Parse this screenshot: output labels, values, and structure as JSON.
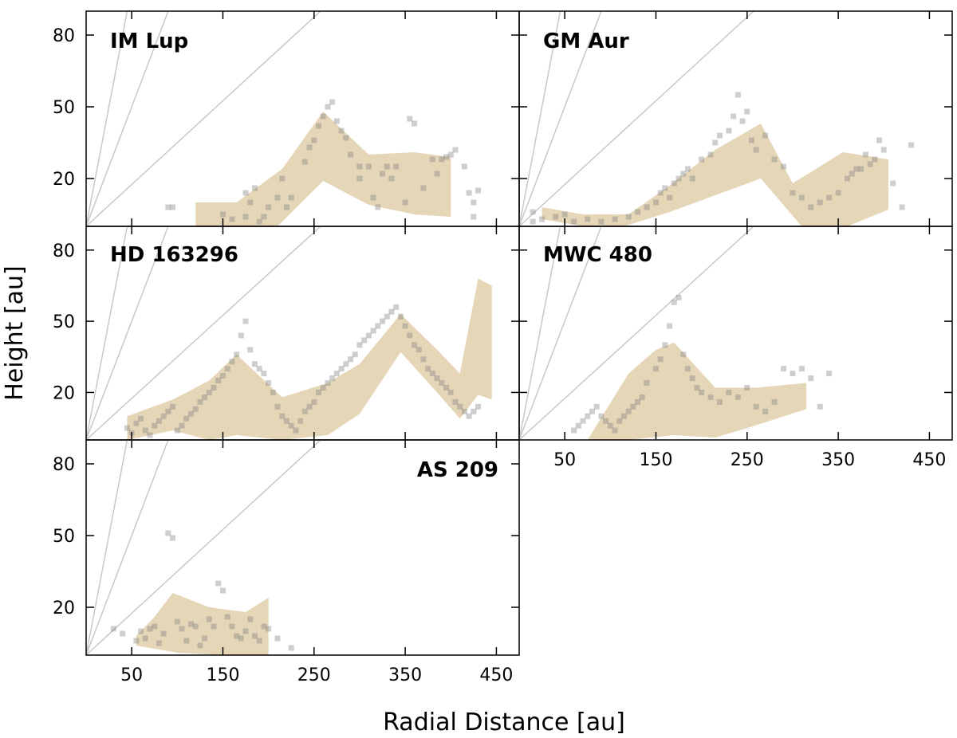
{
  "figure": {
    "xlabel": "Radial Distance [au]",
    "ylabel": "Height [au]"
  },
  "chart_data": [
    {
      "type": "scatter",
      "title": "IM Lup",
      "xlim": [
        0,
        475
      ],
      "ylim": [
        0,
        90
      ],
      "xticks": [
        50,
        150,
        250,
        350,
        450
      ],
      "yticks": [
        20,
        50,
        80
      ],
      "xticklabels_visible": false,
      "reference_lines_slope": [
        2.0,
        1.0,
        0.35
      ],
      "band": {
        "upper": [
          [
            120,
            10
          ],
          [
            165,
            10
          ],
          [
            215,
            24
          ],
          [
            260,
            48
          ],
          [
            310,
            30
          ],
          [
            360,
            31
          ],
          [
            400,
            29
          ]
        ],
        "lower": [
          [
            120,
            0
          ],
          [
            210,
            0
          ],
          [
            260,
            19
          ],
          [
            310,
            9
          ],
          [
            360,
            5
          ],
          [
            400,
            4
          ]
        ]
      },
      "points": [
        [
          90,
          8
        ],
        [
          95,
          8
        ],
        [
          150,
          5
        ],
        [
          160,
          3
        ],
        [
          175,
          4
        ],
        [
          175,
          14
        ],
        [
          180,
          10
        ],
        [
          185,
          16
        ],
        [
          190,
          2
        ],
        [
          195,
          4
        ],
        [
          200,
          8
        ],
        [
          210,
          12
        ],
        [
          215,
          20
        ],
        [
          220,
          8
        ],
        [
          225,
          12
        ],
        [
          240,
          27
        ],
        [
          245,
          33
        ],
        [
          250,
          36
        ],
        [
          255,
          42
        ],
        [
          260,
          46
        ],
        [
          265,
          50
        ],
        [
          270,
          52
        ],
        [
          275,
          44
        ],
        [
          280,
          40
        ],
        [
          285,
          37
        ],
        [
          290,
          30
        ],
        [
          300,
          25
        ],
        [
          300,
          20
        ],
        [
          310,
          25
        ],
        [
          315,
          12
        ],
        [
          320,
          8
        ],
        [
          325,
          22
        ],
        [
          330,
          25
        ],
        [
          335,
          20
        ],
        [
          340,
          25
        ],
        [
          350,
          10
        ],
        [
          355,
          45
        ],
        [
          360,
          43
        ],
        [
          370,
          16
        ],
        [
          380,
          28
        ],
        [
          385,
          22
        ],
        [
          390,
          28
        ],
        [
          395,
          29
        ],
        [
          400,
          30
        ],
        [
          405,
          32
        ],
        [
          415,
          25
        ],
        [
          420,
          14
        ],
        [
          425,
          10
        ],
        [
          425,
          4
        ],
        [
          430,
          15
        ]
      ]
    },
    {
      "type": "scatter",
      "title": "GM Aur",
      "xlim": [
        0,
        475
      ],
      "ylim": [
        0,
        90
      ],
      "xticks": [
        50,
        150,
        250,
        350,
        450
      ],
      "yticks": [
        20,
        50,
        80
      ],
      "xticklabels_visible": false,
      "yticklabels_visible": false,
      "reference_lines_slope": [
        2.0,
        1.0,
        0.35
      ],
      "band": {
        "upper": [
          [
            25,
            8
          ],
          [
            70,
            5
          ],
          [
            120,
            5
          ],
          [
            165,
            17
          ],
          [
            215,
            32
          ],
          [
            265,
            43
          ],
          [
            300,
            18
          ],
          [
            355,
            31
          ],
          [
            405,
            28
          ]
        ],
        "lower": [
          [
            25,
            3
          ],
          [
            70,
            0
          ],
          [
            115,
            0
          ],
          [
            165,
            6
          ],
          [
            215,
            13
          ],
          [
            265,
            20
          ],
          [
            310,
            0
          ],
          [
            360,
            0
          ],
          [
            405,
            7
          ]
        ]
      },
      "points": [
        [
          15,
          2
        ],
        [
          15,
          6
        ],
        [
          25,
          3
        ],
        [
          40,
          4
        ],
        [
          50,
          5
        ],
        [
          60,
          2
        ],
        [
          75,
          3
        ],
        [
          90,
          2
        ],
        [
          105,
          3
        ],
        [
          120,
          4
        ],
        [
          130,
          6
        ],
        [
          140,
          8
        ],
        [
          150,
          10
        ],
        [
          155,
          14
        ],
        [
          160,
          16
        ],
        [
          165,
          12
        ],
        [
          170,
          18
        ],
        [
          175,
          20
        ],
        [
          180,
          22
        ],
        [
          185,
          24
        ],
        [
          190,
          20
        ],
        [
          200,
          28
        ],
        [
          210,
          30
        ],
        [
          215,
          35
        ],
        [
          220,
          38
        ],
        [
          230,
          40
        ],
        [
          235,
          46
        ],
        [
          240,
          55
        ],
        [
          245,
          44
        ],
        [
          250,
          48
        ],
        [
          255,
          36
        ],
        [
          260,
          32
        ],
        [
          270,
          38
        ],
        [
          280,
          28
        ],
        [
          290,
          25
        ],
        [
          300,
          14
        ],
        [
          310,
          12
        ],
        [
          320,
          8
        ],
        [
          330,
          10
        ],
        [
          340,
          12
        ],
        [
          350,
          14
        ],
        [
          360,
          20
        ],
        [
          365,
          22
        ],
        [
          370,
          24
        ],
        [
          375,
          24
        ],
        [
          380,
          30
        ],
        [
          385,
          26
        ],
        [
          390,
          28
        ],
        [
          395,
          36
        ],
        [
          400,
          32
        ],
        [
          410,
          18
        ],
        [
          420,
          8
        ],
        [
          430,
          34
        ]
      ]
    },
    {
      "type": "scatter",
      "title": "HD 163296",
      "xlim": [
        0,
        475
      ],
      "ylim": [
        0,
        90
      ],
      "xticks": [
        50,
        150,
        250,
        350,
        450
      ],
      "yticks": [
        20,
        50,
        80
      ],
      "xticklabels_visible": false,
      "reference_lines_slope": [
        2.0,
        1.0,
        0.35
      ],
      "band": {
        "upper": [
          [
            45,
            10
          ],
          [
            95,
            17
          ],
          [
            135,
            25
          ],
          [
            165,
            36
          ],
          [
            215,
            18
          ],
          [
            265,
            24
          ],
          [
            300,
            32
          ],
          [
            345,
            53
          ],
          [
            385,
            38
          ],
          [
            410,
            28
          ],
          [
            430,
            68
          ],
          [
            445,
            65
          ]
        ],
        "lower": [
          [
            45,
            0
          ],
          [
            95,
            4
          ],
          [
            135,
            0
          ],
          [
            165,
            2
          ],
          [
            215,
            0
          ],
          [
            265,
            2
          ],
          [
            300,
            11
          ],
          [
            345,
            37
          ],
          [
            385,
            20
          ],
          [
            410,
            9
          ],
          [
            430,
            19
          ],
          [
            445,
            17
          ]
        ]
      },
      "points": [
        [
          45,
          5
        ],
        [
          50,
          3
        ],
        [
          55,
          7
        ],
        [
          60,
          9
        ],
        [
          65,
          4
        ],
        [
          70,
          2
        ],
        [
          75,
          6
        ],
        [
          80,
          8
        ],
        [
          85,
          10
        ],
        [
          90,
          12
        ],
        [
          95,
          14
        ],
        [
          100,
          4
        ],
        [
          105,
          6
        ],
        [
          110,
          9
        ],
        [
          115,
          11
        ],
        [
          120,
          13
        ],
        [
          125,
          16
        ],
        [
          130,
          18
        ],
        [
          135,
          20
        ],
        [
          140,
          22
        ],
        [
          145,
          25
        ],
        [
          150,
          27
        ],
        [
          155,
          30
        ],
        [
          160,
          33
        ],
        [
          165,
          36
        ],
        [
          170,
          44
        ],
        [
          175,
          50
        ],
        [
          180,
          38
        ],
        [
          185,
          32
        ],
        [
          190,
          30
        ],
        [
          195,
          28
        ],
        [
          200,
          24
        ],
        [
          205,
          20
        ],
        [
          210,
          14
        ],
        [
          215,
          10
        ],
        [
          220,
          8
        ],
        [
          225,
          6
        ],
        [
          230,
          4
        ],
        [
          235,
          8
        ],
        [
          240,
          12
        ],
        [
          245,
          14
        ],
        [
          250,
          16
        ],
        [
          255,
          20
        ],
        [
          260,
          22
        ],
        [
          265,
          24
        ],
        [
          270,
          26
        ],
        [
          275,
          28
        ],
        [
          280,
          30
        ],
        [
          285,
          32
        ],
        [
          290,
          34
        ],
        [
          295,
          36
        ],
        [
          300,
          40
        ],
        [
          305,
          42
        ],
        [
          310,
          44
        ],
        [
          315,
          46
        ],
        [
          320,
          48
        ],
        [
          325,
          50
        ],
        [
          330,
          52
        ],
        [
          335,
          54
        ],
        [
          340,
          56
        ],
        [
          345,
          52
        ],
        [
          350,
          48
        ],
        [
          355,
          44
        ],
        [
          360,
          40
        ],
        [
          365,
          38
        ],
        [
          370,
          34
        ],
        [
          375,
          30
        ],
        [
          380,
          28
        ],
        [
          385,
          26
        ],
        [
          390,
          24
        ],
        [
          395,
          22
        ],
        [
          400,
          20
        ],
        [
          405,
          16
        ],
        [
          410,
          14
        ],
        [
          415,
          12
        ],
        [
          420,
          10
        ],
        [
          425,
          12
        ],
        [
          430,
          14
        ]
      ]
    },
    {
      "type": "scatter",
      "title": "MWC 480",
      "xlim": [
        0,
        475
      ],
      "ylim": [
        0,
        90
      ],
      "xticks": [
        50,
        150,
        250,
        350,
        450
      ],
      "yticks": [
        20,
        50,
        80
      ],
      "xticklabels": [
        "50",
        "150",
        "250",
        "350",
        "450"
      ],
      "yticklabels_visible": false,
      "reference_lines_slope": [
        2.0,
        1.0,
        0.35
      ],
      "band": {
        "upper": [
          [
            75,
            0
          ],
          [
            120,
            28
          ],
          [
            150,
            38
          ],
          [
            170,
            41
          ],
          [
            215,
            22
          ],
          [
            260,
            22
          ],
          [
            315,
            24
          ]
        ],
        "lower": [
          [
            75,
            0
          ],
          [
            120,
            0
          ],
          [
            170,
            2
          ],
          [
            215,
            1
          ],
          [
            250,
            5
          ],
          [
            315,
            13
          ]
        ]
      },
      "points": [
        [
          60,
          4
        ],
        [
          65,
          6
        ],
        [
          70,
          8
        ],
        [
          75,
          10
        ],
        [
          80,
          12
        ],
        [
          85,
          14
        ],
        [
          90,
          10
        ],
        [
          95,
          8
        ],
        [
          100,
          6
        ],
        [
          105,
          4
        ],
        [
          110,
          8
        ],
        [
          115,
          10
        ],
        [
          120,
          12
        ],
        [
          125,
          14
        ],
        [
          130,
          16
        ],
        [
          135,
          18
        ],
        [
          140,
          24
        ],
        [
          150,
          30
        ],
        [
          155,
          34
        ],
        [
          160,
          40
        ],
        [
          165,
          48
        ],
        [
          170,
          58
        ],
        [
          175,
          60
        ],
        [
          180,
          36
        ],
        [
          185,
          30
        ],
        [
          190,
          26
        ],
        [
          195,
          22
        ],
        [
          200,
          20
        ],
        [
          210,
          18
        ],
        [
          220,
          16
        ],
        [
          230,
          20
        ],
        [
          240,
          18
        ],
        [
          250,
          22
        ],
        [
          260,
          14
        ],
        [
          270,
          12
        ],
        [
          280,
          16
        ],
        [
          290,
          30
        ],
        [
          300,
          28
        ],
        [
          310,
          30
        ],
        [
          320,
          26
        ],
        [
          330,
          14
        ],
        [
          340,
          28
        ]
      ]
    },
    {
      "type": "scatter",
      "title": "AS 209",
      "xlim": [
        0,
        475
      ],
      "ylim": [
        0,
        90
      ],
      "xticks": [
        50,
        150,
        250,
        350,
        450
      ],
      "yticks": [
        20,
        50,
        80
      ],
      "xticklabels": [
        "50",
        "150",
        "250",
        "350",
        "450"
      ],
      "reference_lines_slope": [
        2.0,
        1.0,
        0.35
      ],
      "band": {
        "upper": [
          [
            55,
            8
          ],
          [
            75,
            16
          ],
          [
            95,
            26
          ],
          [
            135,
            20
          ],
          [
            175,
            18
          ],
          [
            200,
            24
          ]
        ],
        "lower": [
          [
            55,
            4
          ],
          [
            100,
            1
          ],
          [
            150,
            0
          ],
          [
            200,
            0
          ]
        ]
      },
      "points": [
        [
          30,
          11
        ],
        [
          40,
          9
        ],
        [
          55,
          6
        ],
        [
          60,
          10
        ],
        [
          65,
          7
        ],
        [
          70,
          11
        ],
        [
          75,
          12
        ],
        [
          80,
          5
        ],
        [
          85,
          9
        ],
        [
          90,
          51
        ],
        [
          95,
          49
        ],
        [
          100,
          14
        ],
        [
          105,
          11
        ],
        [
          110,
          6
        ],
        [
          115,
          13
        ],
        [
          120,
          12
        ],
        [
          125,
          4
        ],
        [
          130,
          7
        ],
        [
          135,
          15
        ],
        [
          140,
          12
        ],
        [
          145,
          30
        ],
        [
          150,
          27
        ],
        [
          155,
          16
        ],
        [
          160,
          12
        ],
        [
          165,
          8
        ],
        [
          170,
          7
        ],
        [
          175,
          10
        ],
        [
          180,
          15
        ],
        [
          185,
          8
        ],
        [
          190,
          6
        ],
        [
          195,
          12
        ],
        [
          200,
          11
        ],
        [
          210,
          7
        ],
        [
          225,
          3
        ]
      ]
    }
  ]
}
